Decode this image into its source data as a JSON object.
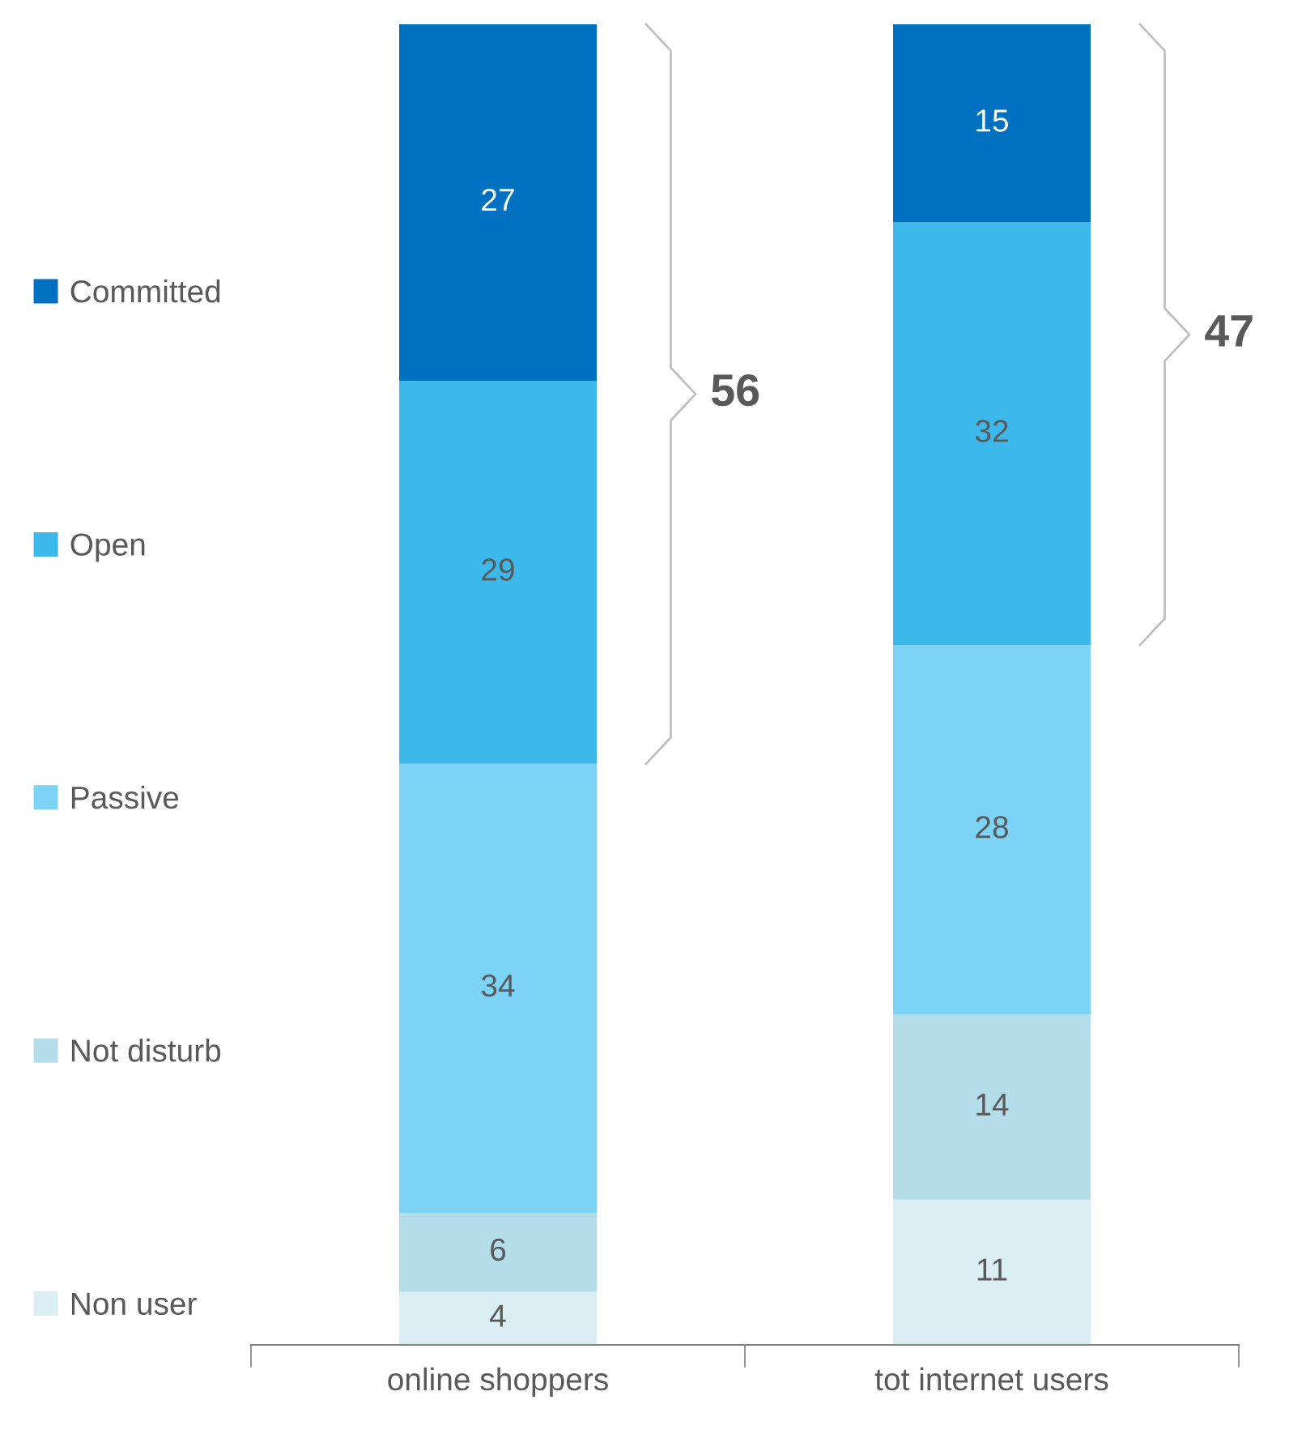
{
  "chart_data": {
    "type": "bar",
    "stacked": true,
    "data_labels": true,
    "legend": "left",
    "grid": false,
    "categories": [
      "online shoppers",
      "tot internet users"
    ],
    "series": [
      {
        "name": "Non user",
        "color": "#dbeef4",
        "values": [
          4,
          11
        ]
      },
      {
        "name": "Not disturb",
        "color": "#b4dde9",
        "values": [
          6,
          14
        ]
      },
      {
        "name": "Passive",
        "color": "#7dd3f5",
        "values": [
          34,
          28
        ]
      },
      {
        "name": "Open",
        "color": "#3db8ea",
        "values": [
          29,
          32
        ]
      },
      {
        "name": "Committed",
        "color": "#0070c0",
        "values": [
          27,
          15
        ]
      }
    ],
    "annotations": [
      "56",
      "47"
    ]
  }
}
